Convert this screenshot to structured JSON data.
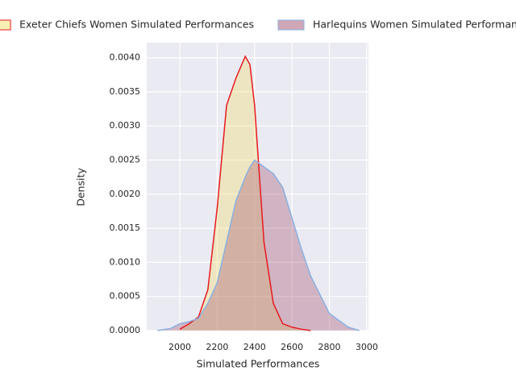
{
  "chart_data": {
    "type": "area",
    "xlabel": "Simulated Performances",
    "ylabel": "Density",
    "x": [
      1880,
      1950,
      2000,
      2050,
      2100,
      2150,
      2200,
      2250,
      2300,
      2350,
      2375,
      2400,
      2450,
      2500,
      2550,
      2600,
      2650,
      2700,
      2800,
      2900,
      2960
    ],
    "series": [
      {
        "name": "Exeter Chiefs Women Simulated Performances",
        "color": "#e8191e",
        "fill": "#f3dd6a",
        "values": [
          null,
          null,
          2e-05,
          0.0001,
          0.0002,
          0.0006,
          0.0018,
          0.0033,
          0.0037,
          0.00402,
          0.0039,
          0.0033,
          0.0013,
          0.0004,
          0.0001,
          5e-05,
          2e-05,
          0,
          null,
          null,
          null
        ]
      },
      {
        "name": "Harlequins Women Simulated Performances",
        "color": "#8ab0e0",
        "fill": "#a0506e",
        "values": [
          0,
          3e-05,
          0.0001,
          0.00013,
          0.00018,
          0.0004,
          0.0007,
          0.0013,
          0.0019,
          0.00225,
          0.0024,
          0.0025,
          0.0024,
          0.0023,
          0.0021,
          0.00165,
          0.0012,
          0.0008,
          0.00025,
          5e-05,
          0
        ]
      }
    ],
    "xlim": [
      1823,
      3009
    ],
    "ylim": [
      0,
      0.00422
    ],
    "xticks": [
      2000,
      2200,
      2400,
      2600,
      2800,
      3000
    ],
    "yticks": [
      {
        "value": 0,
        "label": "0.0000"
      },
      {
        "value": 0.0005,
        "label": "0.0005"
      },
      {
        "value": 0.001,
        "label": "0.0010"
      },
      {
        "value": 0.0015,
        "label": "0.0015"
      },
      {
        "value": 0.002,
        "label": "0.0020"
      },
      {
        "value": 0.0025,
        "label": "0.0025"
      },
      {
        "value": 0.003,
        "label": "0.0030"
      },
      {
        "value": 0.0035,
        "label": "0.0035"
      },
      {
        "value": 0.004,
        "label": "0.0040"
      }
    ],
    "grid": true
  }
}
